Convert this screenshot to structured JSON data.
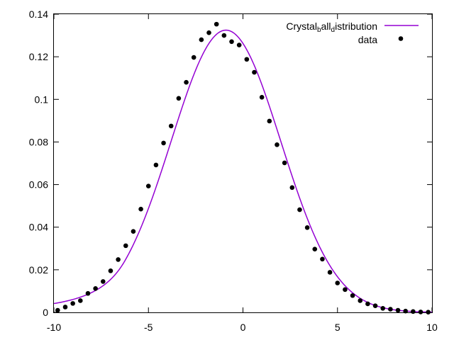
{
  "chart_data": {
    "type": "scatter",
    "title": "",
    "xlabel": "",
    "ylabel": "",
    "xlim": [
      -10,
      10
    ],
    "ylim": [
      0,
      0.14
    ],
    "x_ticks": [
      -10,
      -5,
      0,
      5,
      10
    ],
    "x_tick_labels": [
      "-10",
      "-5",
      "0",
      "5",
      "10"
    ],
    "y_ticks": [
      0,
      0.02,
      0.04,
      0.06,
      0.08,
      0.1,
      0.12,
      0.14
    ],
    "y_tick_labels": [
      "0",
      "0.02",
      "0.04",
      "0.06",
      "0.08",
      "0.1",
      "0.12",
      "0.14"
    ],
    "grid": false,
    "legend_position": "top-right",
    "legend": {
      "fit_label_parts": [
        "Crystal",
        "b",
        "all",
        "d",
        "istribution"
      ],
      "data_label": "data"
    },
    "colors": {
      "fit": "#9400d3",
      "data": "#000000"
    },
    "fit_curve": {
      "shape": "crystal-ball",
      "mean": -0.9,
      "sigma": 2.9,
      "peak": 0.1325,
      "alpha": 1.85,
      "n": 3.0
    },
    "series": [
      {
        "name": "data",
        "x": [
          -9.8,
          -9.4,
          -9.0,
          -8.6,
          -8.2,
          -7.8,
          -7.4,
          -7.0,
          -6.6,
          -6.2,
          -5.8,
          -5.4,
          -5.0,
          -4.6,
          -4.2,
          -3.8,
          -3.4,
          -3.0,
          -2.6,
          -2.2,
          -1.8,
          -1.4,
          -1.0,
          -0.6,
          -0.2,
          0.2,
          0.6,
          1.0,
          1.4,
          1.8,
          2.2,
          2.6,
          3.0,
          3.4,
          3.8,
          4.2,
          4.6,
          5.0,
          5.4,
          5.8,
          6.2,
          6.6,
          7.0,
          7.4,
          7.8,
          8.2,
          8.6,
          9.0,
          9.4,
          9.8
        ],
        "y": [
          0.001,
          0.0025,
          0.0042,
          0.0055,
          0.0089,
          0.0112,
          0.0145,
          0.0195,
          0.0248,
          0.0313,
          0.038,
          0.0485,
          0.0593,
          0.0692,
          0.0795,
          0.0875,
          0.1005,
          0.108,
          0.1197,
          0.128,
          0.1313,
          0.1353,
          0.13,
          0.1271,
          0.1255,
          0.1188,
          0.1127,
          0.101,
          0.0898,
          0.0787,
          0.0702,
          0.0586,
          0.0482,
          0.0398,
          0.0297,
          0.025,
          0.0188,
          0.0138,
          0.0107,
          0.0079,
          0.0055,
          0.004,
          0.0031,
          0.0019,
          0.0015,
          0.001,
          0.0006,
          0.0004,
          0.0002,
          0.0001
        ]
      }
    ]
  }
}
